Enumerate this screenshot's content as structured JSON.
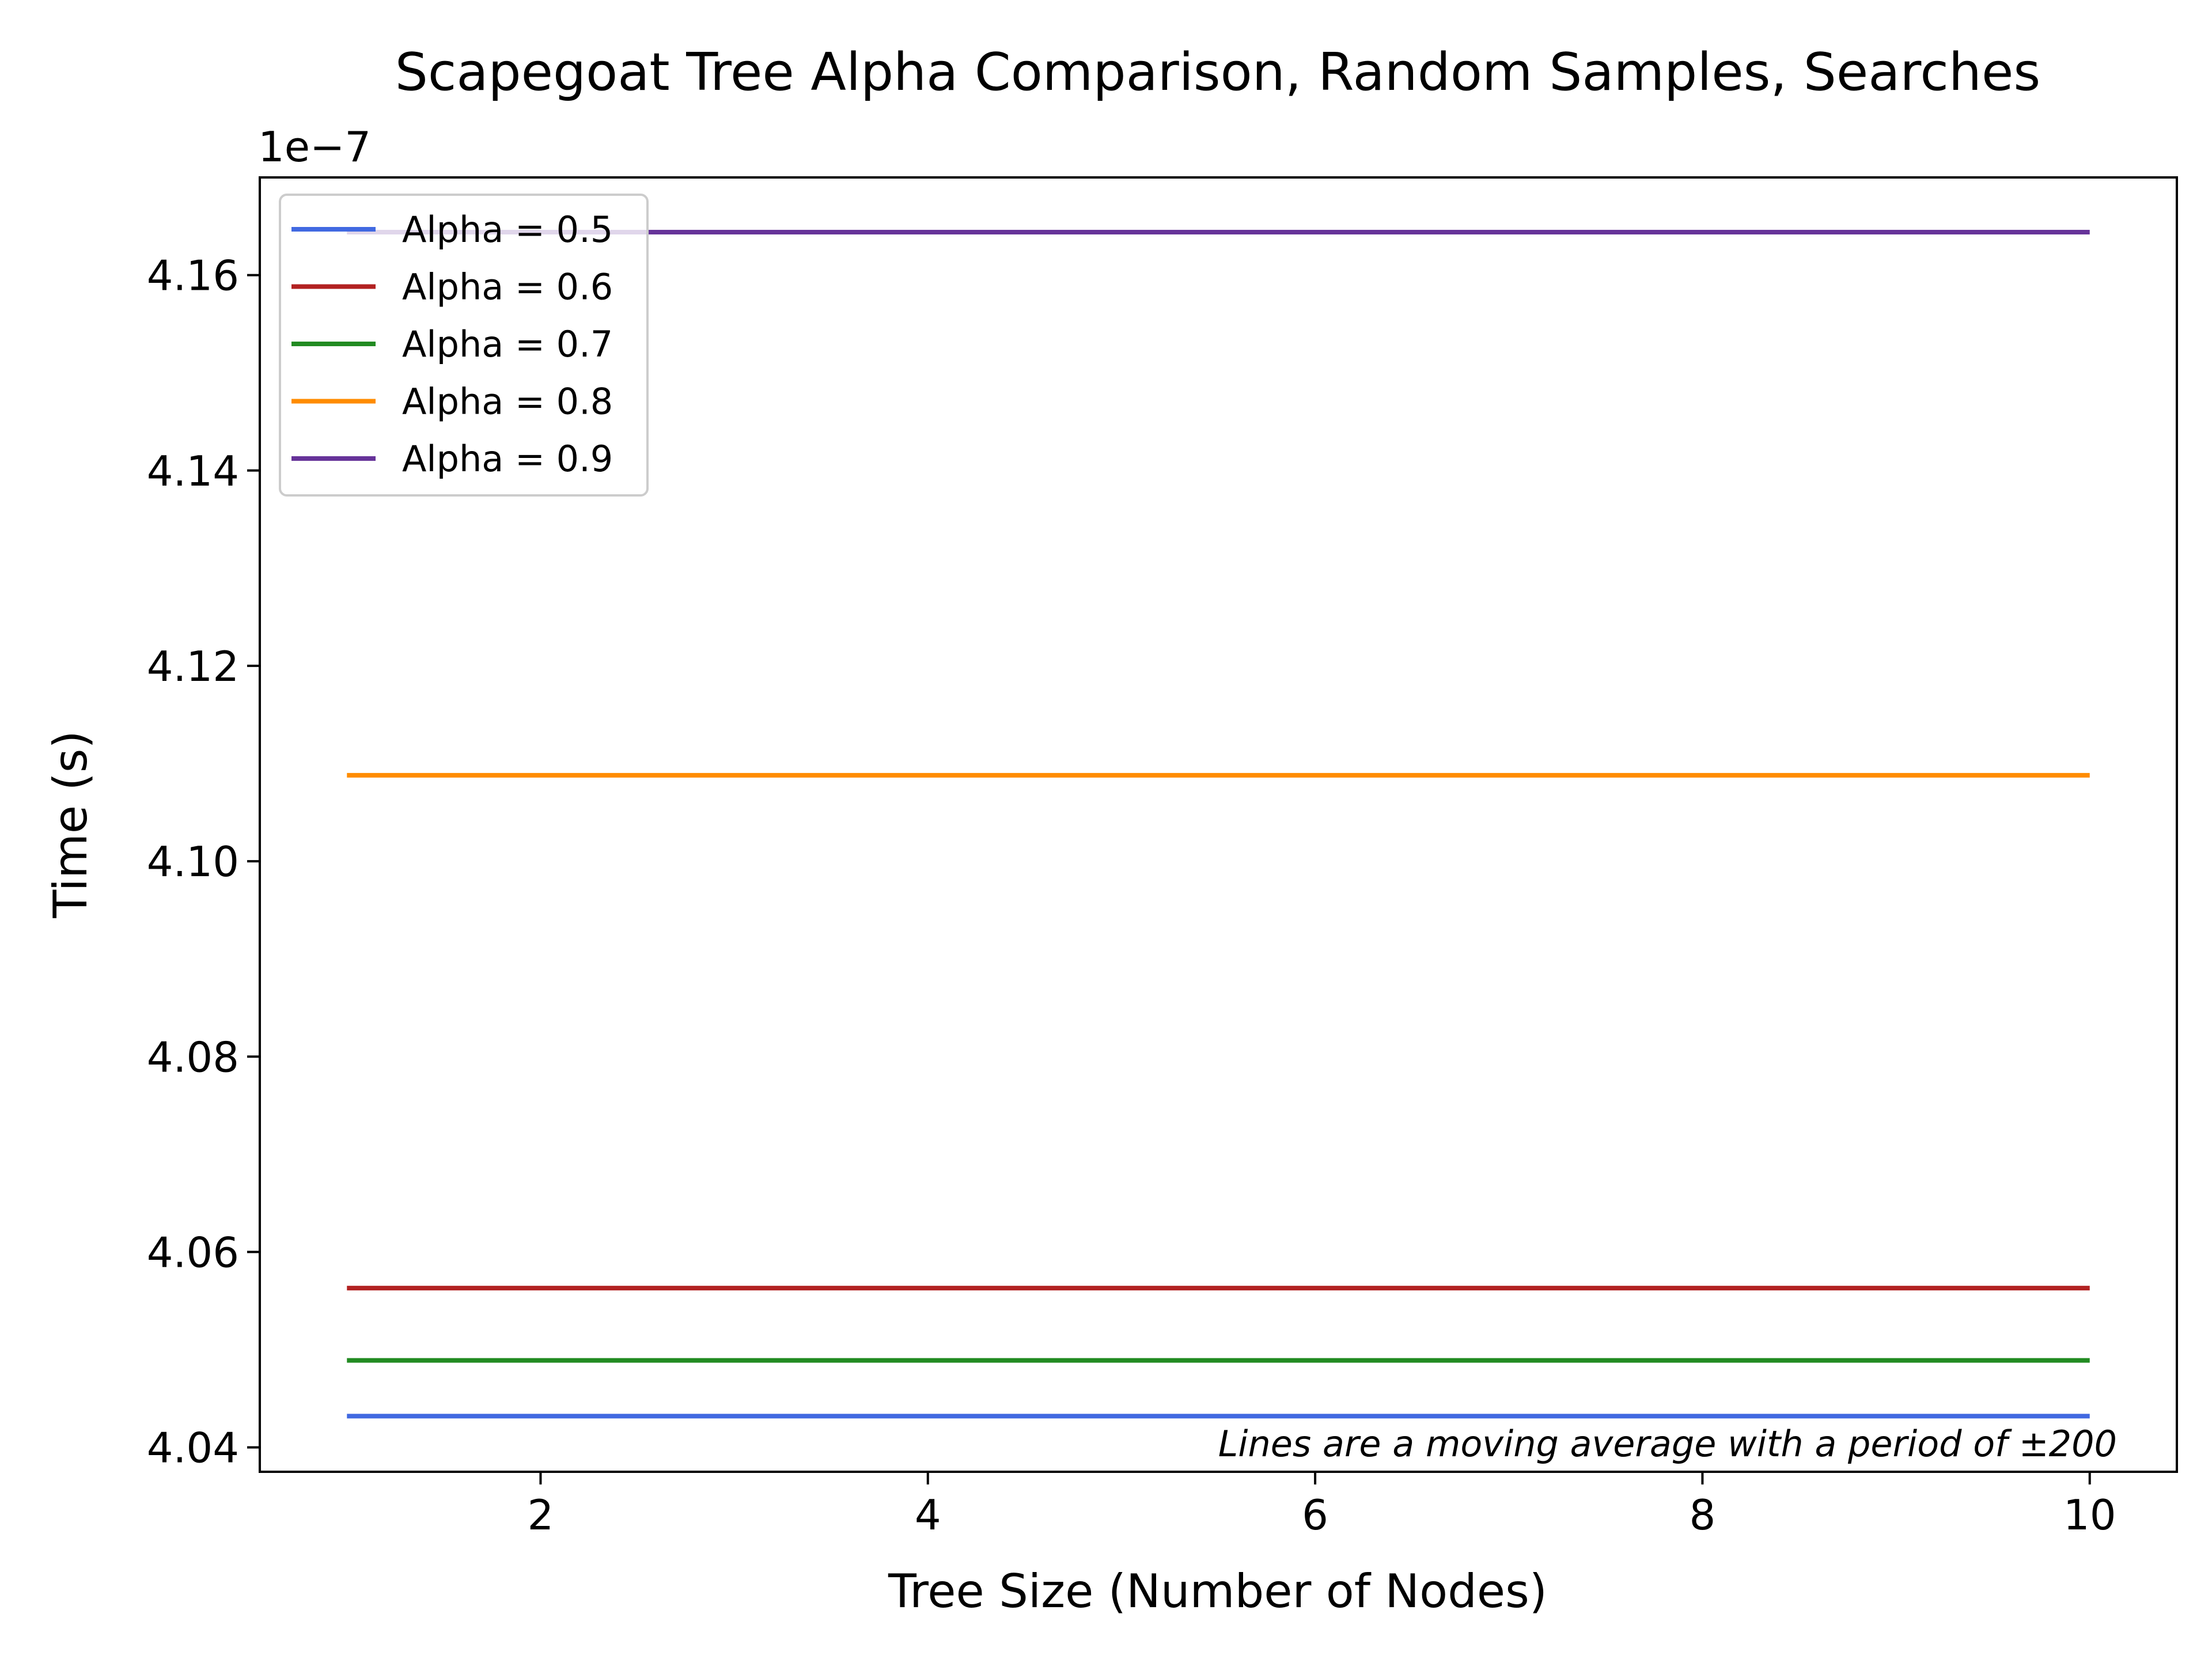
{
  "chart_data": {
    "type": "line",
    "title": "Scapegoat Tree Alpha Comparison, Random Samples, Searches",
    "xlabel": "Tree Size (Number of Nodes)",
    "ylabel": "Time (s)",
    "y_offset_label": "1e−7",
    "annotation": "Lines are a moving average with a period of ±200",
    "xlim": [
      0.55,
      10.45
    ],
    "ylim": [
      4.0375,
      4.17
    ],
    "x_ticks": [
      2,
      4,
      6,
      8,
      10
    ],
    "x_tick_labels": [
      "2",
      "4",
      "6",
      "8",
      "10"
    ],
    "y_ticks": [
      4.04,
      4.06,
      4.08,
      4.1,
      4.12,
      4.14,
      4.16
    ],
    "y_tick_labels": [
      "4.04",
      "4.06",
      "4.08",
      "4.10",
      "4.12",
      "4.14",
      "4.16"
    ],
    "y_scale_factor": 1e-07,
    "legend_position": "top-left",
    "grid": false,
    "x": [
      1,
      10
    ],
    "series": [
      {
        "name": "Alpha = 0.5",
        "color": "#4169e1",
        "values": [
          4.0432,
          4.0432
        ]
      },
      {
        "name": "Alpha = 0.6",
        "color": "#b22222",
        "values": [
          4.0563,
          4.0563
        ]
      },
      {
        "name": "Alpha = 0.7",
        "color": "#228b22",
        "values": [
          4.0489,
          4.0489
        ]
      },
      {
        "name": "Alpha = 0.8",
        "color": "#ff8c00",
        "values": [
          4.1088,
          4.1088
        ]
      },
      {
        "name": "Alpha = 0.9",
        "color": "#663399",
        "values": [
          4.1644,
          4.1644
        ]
      }
    ]
  }
}
